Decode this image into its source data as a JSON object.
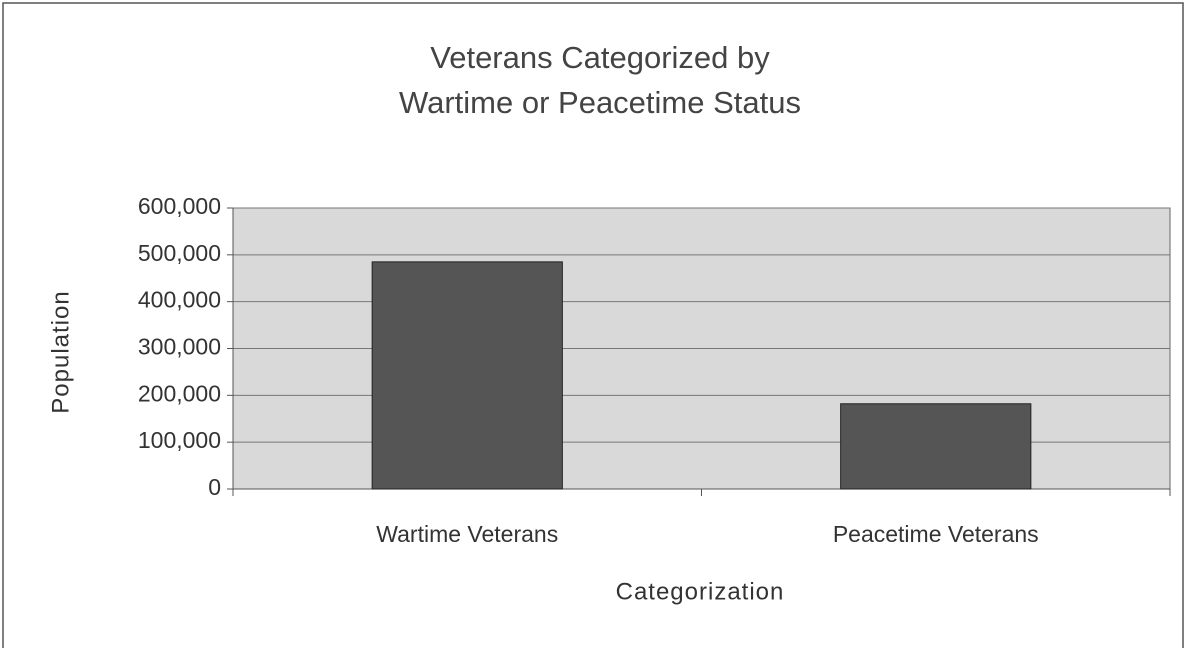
{
  "chart_data": {
    "type": "bar",
    "title": [
      "Veterans Categorized by",
      "Wartime or Peacetime Status"
    ],
    "xlabel": "Categorization",
    "ylabel": "Population",
    "categories": [
      "Wartime Veterans",
      "Peacetime Veterans"
    ],
    "values": [
      485000,
      182000
    ],
    "color": "#555555",
    "ylim": [
      0,
      600000
    ],
    "yticks": [
      0,
      {
        "value": 100000,
        "label": "100,000"
      },
      {
        "value": 200000,
        "label": "200,000"
      },
      {
        "value": 300000,
        "label": "300,000"
      },
      {
        "value": 400000,
        "label": "400,000"
      },
      {
        "value": 500000,
        "label": "500,000"
      },
      {
        "value": 600000,
        "label": "600,000"
      }
    ],
    "grid": true
  }
}
